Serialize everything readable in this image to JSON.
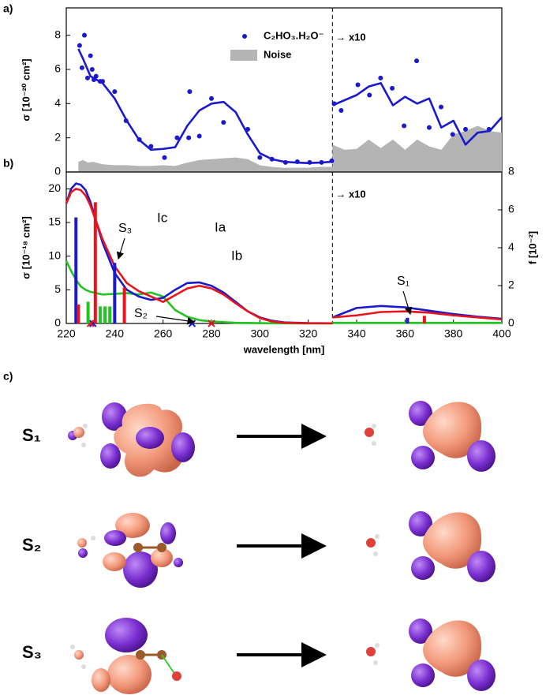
{
  "panel_labels": [
    "a)",
    "b)",
    "c)"
  ],
  "transitions": [
    {
      "label": "S₁"
    },
    {
      "label": "S₂"
    },
    {
      "label": "S₃"
    }
  ],
  "chart_data": [
    {
      "type": "line",
      "xlim": [
        220,
        400
      ],
      "xticks": [
        220,
        240,
        260,
        280,
        300,
        320,
        340,
        360,
        380,
        400
      ],
      "ylim": [
        0,
        9.6
      ],
      "yticks": [
        0,
        2,
        4,
        6,
        8
      ],
      "ylabel": "σ [10⁻²⁰ cm²]",
      "break_x": 330,
      "break_note": "→ x10",
      "legend": "top-right",
      "series": [
        {
          "name": "Noise",
          "type": "area",
          "color": "#b4b4b4",
          "x": [
            225,
            227,
            229,
            231,
            235,
            240,
            245,
            250,
            255,
            260,
            265,
            270,
            275,
            280,
            285,
            290,
            295,
            300,
            305,
            310,
            315,
            320,
            325,
            330,
            330,
            330,
            335,
            340,
            345,
            350,
            355,
            360,
            365,
            370,
            375,
            380,
            385,
            390,
            395,
            400
          ],
          "values": [
            0.6,
            0.7,
            0.55,
            0.6,
            0.45,
            0.4,
            0.4,
            0.35,
            0.35,
            0.4,
            0.35,
            0.55,
            0.7,
            0.75,
            0.8,
            0.85,
            0.75,
            0.4,
            0.3,
            0.25,
            0.25,
            0.25,
            0.3,
            0.3,
            null,
            1.6,
            1.3,
            1.35,
            1.9,
            1.4,
            1.9,
            1.3,
            1.9,
            1.5,
            1.3,
            2.2,
            2.4,
            2.7,
            2.4,
            2.3
          ]
        },
        {
          "type": "line",
          "color": "#1a1acc",
          "x": [
            225,
            227,
            230,
            235,
            240,
            245,
            250,
            255,
            260,
            265,
            270,
            275,
            280,
            285,
            290,
            295,
            300,
            305,
            310,
            315,
            320,
            325,
            330,
            330,
            330,
            335,
            340,
            345,
            350,
            355,
            360,
            365,
            370,
            375,
            380,
            385,
            390,
            395,
            400
          ],
          "values": [
            7.2,
            6.6,
            5.6,
            5.2,
            4.3,
            3.0,
            1.9,
            1.3,
            1.35,
            1.45,
            2.7,
            3.6,
            4.0,
            4.1,
            3.5,
            2.2,
            1.1,
            0.75,
            0.6,
            0.55,
            0.52,
            0.55,
            0.6,
            null,
            3.9,
            4.2,
            4.5,
            5.0,
            5.2,
            3.9,
            4.4,
            4.0,
            4.3,
            2.6,
            3.0,
            1.6,
            2.3,
            2.4,
            3.2
          ]
        },
        {
          "name": "C₂HO₃.H₂O⁻",
          "type": "scatter",
          "color": "#1a1acc",
          "x": [
            225.5,
            226.5,
            227.5,
            228.8,
            230,
            230.7,
            231.4,
            232.3,
            234,
            235,
            240,
            244.7,
            250.2,
            255,
            260.6,
            265.8,
            270.6,
            271,
            275,
            280,
            285,
            295,
            300,
            305,
            310.6,
            315.5,
            320.6,
            325.5,
            329.7,
            330.7,
            333.6,
            340.5,
            345.3,
            349.9,
            354.7,
            359.6,
            364.8,
            370,
            374.9,
            379.7,
            385,
            394.7
          ],
          "values": [
            7.4,
            6.1,
            8.0,
            5.5,
            6.8,
            6.0,
            5.4,
            5.6,
            5.3,
            5.3,
            4.7,
            3.0,
            1.9,
            1.5,
            0.84,
            2.0,
            2.0,
            4.7,
            2.1,
            4.3,
            2.9,
            2.5,
            0.85,
            0.75,
            0.56,
            0.6,
            0.56,
            0.56,
            0.65,
            4.0,
            3.6,
            5.1,
            4.5,
            5.5,
            4.9,
            2.7,
            6.5,
            2.6,
            3.8,
            2.2,
            2.5,
            2.5
          ]
        }
      ]
    },
    {
      "type": "line",
      "xlim": [
        220,
        400
      ],
      "xticks": [
        220,
        240,
        260,
        280,
        300,
        320,
        340,
        360,
        380,
        400
      ],
      "xlabel": "wavelength [nm]",
      "ylim": [
        0,
        22.5
      ],
      "yticks": [
        0,
        5,
        10,
        15,
        20
      ],
      "ylabel": "σ [10⁻¹⁸ cm²]",
      "y2lim": [
        0,
        8
      ],
      "y2ticks": [
        0,
        2,
        4,
        6,
        8
      ],
      "y2label": "f [10⁻²]",
      "break_x": 330,
      "break_note": "→ x10",
      "annotations": [
        "S₃",
        "S₂",
        "S₁"
      ],
      "series": [
        {
          "name": "Ic",
          "type": "line",
          "color": "#22c422",
          "x": [
            220,
            222,
            224,
            226,
            228,
            230,
            235,
            240,
            245,
            250,
            255,
            260,
            265,
            270,
            275,
            280,
            285,
            290,
            295,
            300,
            305,
            310,
            320,
            330,
            330,
            330,
            340,
            350,
            360,
            370,
            380,
            390,
            400
          ],
          "values": [
            9.3,
            7.8,
            6.5,
            5.5,
            5.0,
            4.7,
            4.3,
            4.4,
            4.5,
            4.3,
            4.6,
            4.0,
            2.0,
            1.0,
            0.5,
            0.3,
            0.2,
            0.1,
            0.08,
            0.05,
            0.03,
            0.02,
            0.01,
            0,
            null,
            0.1,
            0.1,
            0.1,
            0.1,
            0.1,
            0.1,
            0.1,
            0.1
          ]
        },
        {
          "name": "Ia",
          "type": "line",
          "color": "#1a1acc",
          "x": [
            220,
            222,
            224,
            226,
            228,
            230,
            235,
            240,
            245,
            250,
            255,
            260,
            265,
            270,
            275,
            280,
            285,
            290,
            295,
            300,
            305,
            310,
            320,
            330,
            330,
            330,
            340,
            350,
            360,
            370,
            380,
            390,
            400
          ],
          "values": [
            17.8,
            20.0,
            20.8,
            20.6,
            19.8,
            18.0,
            12.0,
            7.5,
            5.0,
            4.0,
            3.5,
            3.8,
            5.0,
            6.0,
            6.1,
            5.6,
            4.6,
            3.2,
            1.8,
            0.9,
            0.4,
            0.15,
            0.05,
            0.03,
            null,
            0.9,
            2.3,
            2.6,
            2.4,
            1.9,
            1.4,
            1.0,
            0.7
          ]
        },
        {
          "name": "Ib",
          "type": "line",
          "color": "#e8141c",
          "x": [
            220,
            222,
            224,
            226,
            228,
            230,
            235,
            240,
            245,
            250,
            255,
            260,
            265,
            270,
            275,
            280,
            285,
            290,
            295,
            300,
            305,
            310,
            320,
            330,
            330,
            330,
            340,
            350,
            360,
            370,
            380,
            390,
            400
          ],
          "values": [
            17.8,
            19.5,
            20.0,
            19.8,
            19.0,
            17.5,
            12.5,
            8.5,
            6.0,
            4.8,
            4.0,
            3.2,
            4.2,
            5.2,
            5.6,
            5.2,
            4.3,
            3.0,
            1.8,
            0.8,
            0.3,
            0.1,
            0.03,
            0.02,
            null,
            0.9,
            1.2,
            1.7,
            1.8,
            1.6,
            1.2,
            0.9,
            0.6
          ]
        },
        {
          "type": "stick",
          "axis": "y2",
          "color": "#1a1acc",
          "x": [
            224,
            231,
            240,
            272,
            361
          ],
          "values": [
            5.6,
            0,
            3.2,
            0,
            0.3
          ]
        },
        {
          "type": "stick",
          "axis": "y2",
          "color": "#e8141c",
          "x": [
            225,
            230,
            232,
            244,
            280,
            368
          ],
          "values": [
            1.0,
            0,
            6.4,
            1.9,
            0,
            0.4
          ]
        },
        {
          "type": "stick",
          "axis": "y2",
          "color": "#22c422",
          "x": [
            229,
            234,
            236,
            238
          ],
          "values": [
            1.15,
            0.9,
            0.9,
            0.9
          ]
        }
      ]
    }
  ]
}
